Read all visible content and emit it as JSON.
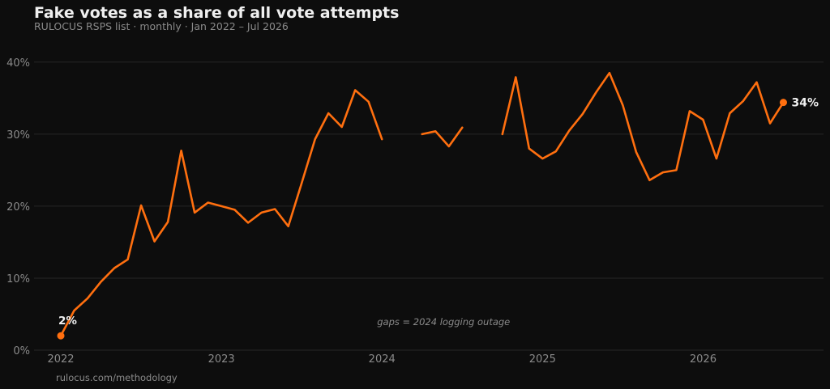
{
  "title": "Fake votes as a share of all vote attempts",
  "subtitle": "RULOCUS RSPS list · monthly · Jan 2022 – Jul 2026",
  "footer": "rulocus.com/methodology",
  "colors": {
    "line": "#ff6f0f",
    "grid": "#262626",
    "tick": "#8a8a8a",
    "label": "#f0f0f0",
    "background": "#0d0d0d"
  },
  "chart_data": {
    "type": "line",
    "title": "Fake votes as a share of all vote attempts",
    "subtitle": "RULOCUS RSPS list · monthly · Jan 2022 – Jul 2026",
    "xlabel": "",
    "ylabel": "",
    "ylim": [
      0,
      42
    ],
    "xlim": [
      "2021-11",
      "2026-10"
    ],
    "grid": "horizontal",
    "y_ticks": [
      0,
      10,
      20,
      30,
      40
    ],
    "y_tick_labels": [
      "0%",
      "10%",
      "20%",
      "30%",
      "40%"
    ],
    "x_ticks": [
      "2022-01",
      "2023-01",
      "2024-01",
      "2025-01",
      "2026-01"
    ],
    "x_tick_labels": [
      "2022",
      "2023",
      "2024",
      "2025",
      "2026"
    ],
    "series": [
      {
        "x": [
          "2022-01",
          "2022-02",
          "2022-03",
          "2022-04",
          "2022-05",
          "2022-06",
          "2022-07",
          "2022-08",
          "2022-09",
          "2022-10",
          "2022-11",
          "2022-12",
          "2023-01",
          "2023-02",
          "2023-03",
          "2023-04",
          "2023-05",
          "2023-06",
          "2023-07",
          "2023-08",
          "2023-09",
          "2023-10",
          "2023-11",
          "2023-12",
          "2024-01",
          "2024-02",
          "2024-03",
          "2024-04",
          "2024-05",
          "2024-06",
          "2024-07",
          "2024-08",
          "2024-09",
          "2024-10",
          "2024-11",
          "2024-12",
          "2025-01",
          "2025-02",
          "2025-03",
          "2025-04",
          "2025-05",
          "2025-06",
          "2025-07",
          "2025-08",
          "2025-09",
          "2025-10",
          "2025-11",
          "2025-12",
          "2026-01",
          "2026-02",
          "2026-03",
          "2026-04",
          "2026-05",
          "2026-06",
          "2026-07"
        ],
        "values": [
          2.0,
          5.5,
          7.2,
          9.5,
          11.4,
          12.6,
          20.1,
          15.1,
          17.8,
          27.7,
          19.1,
          20.5,
          20.0,
          19.5,
          17.7,
          19.1,
          19.6,
          17.2,
          23.2,
          29.3,
          32.9,
          31.0,
          36.1,
          34.5,
          29.3,
          null,
          null,
          30.0,
          30.4,
          28.3,
          30.9,
          null,
          null,
          30.0,
          37.9,
          28.0,
          26.6,
          27.6,
          30.5,
          32.8,
          35.8,
          38.5,
          34.0,
          27.5,
          23.6,
          24.7,
          25.0,
          33.2,
          32.0,
          26.6,
          32.9,
          34.6,
          37.2,
          31.5,
          34.4
        ]
      }
    ],
    "endpoint_labels": [
      {
        "x": "2022-01",
        "text": "2%"
      },
      {
        "x": "2026-07",
        "text": "34%"
      }
    ],
    "annotation": "gaps = 2024 logging outage"
  }
}
